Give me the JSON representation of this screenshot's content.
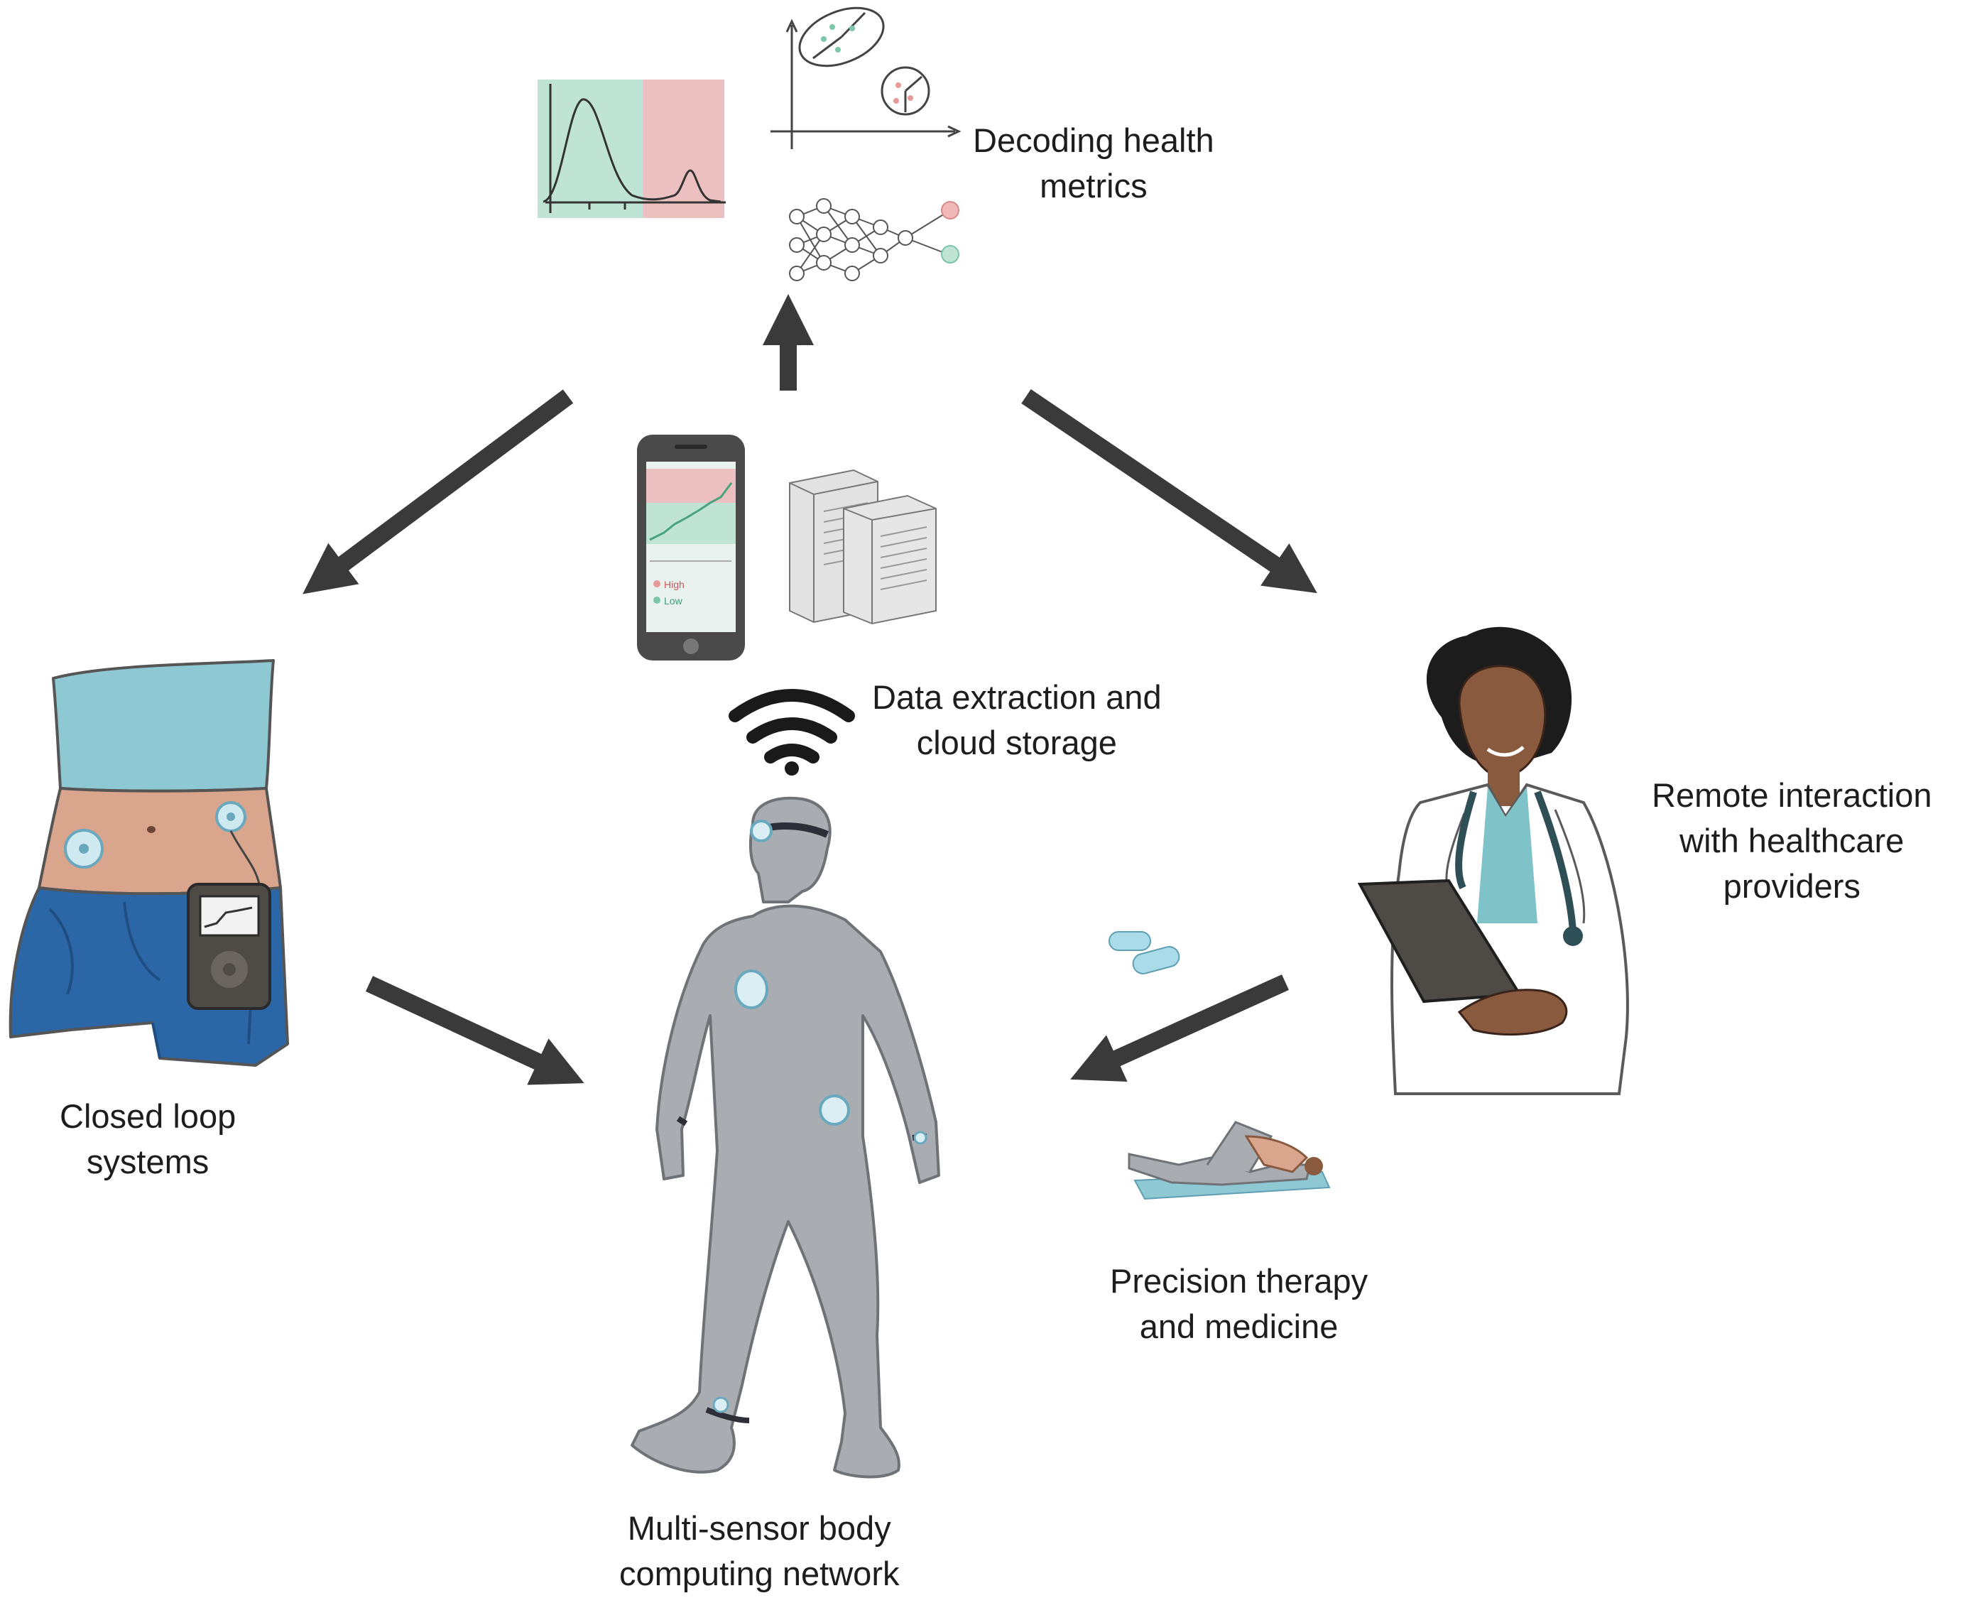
{
  "labels": {
    "decoding": [
      "Decoding health",
      "metrics"
    ],
    "data_extraction": [
      "Data extraction and",
      "cloud storage"
    ],
    "remote": [
      "Remote interaction",
      "with healthcare",
      "providers"
    ],
    "closed_loop": [
      "Closed loop",
      "systems"
    ],
    "precision": [
      "Precision therapy",
      "and medicine"
    ],
    "multisensor": [
      "Multi-sensor body",
      "computing network"
    ]
  },
  "phone_legend": [
    "High",
    "Low"
  ],
  "colors": {
    "arrow": "#3a3a3a",
    "healthy_zone": "#bfe3d4",
    "risk_zone": "#ecc0c0",
    "sensor": "#8fcfe0",
    "body": "#a9adb2",
    "denim": "#2b67a6",
    "skin": "#d9a58c",
    "tank_top": "#8ec8d3",
    "scrubs": "#7fc3c9"
  },
  "icons": [
    "density-plot-icon",
    "cluster-plot-icon",
    "neural-network-icon",
    "smartphone-icon",
    "server-icon",
    "wifi-icon",
    "walking-person-icon",
    "torso-icon",
    "insulin-pump-icon",
    "doctor-icon",
    "pills-icon",
    "exercise-icon"
  ]
}
